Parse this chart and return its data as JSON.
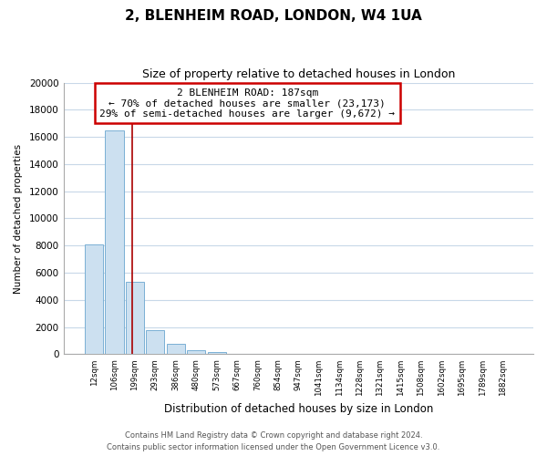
{
  "title": "2, BLENHEIM ROAD, LONDON, W4 1UA",
  "subtitle": "Size of property relative to detached houses in London",
  "xlabel": "Distribution of detached houses by size in London",
  "ylabel": "Number of detached properties",
  "bar_labels": [
    "12sqm",
    "106sqm",
    "199sqm",
    "293sqm",
    "386sqm",
    "480sqm",
    "573sqm",
    "667sqm",
    "760sqm",
    "854sqm",
    "947sqm",
    "1041sqm",
    "1134sqm",
    "1228sqm",
    "1321sqm",
    "1415sqm",
    "1508sqm",
    "1602sqm",
    "1695sqm",
    "1789sqm",
    "1882sqm"
  ],
  "bar_values": [
    8100,
    16500,
    5300,
    1800,
    800,
    300,
    150,
    0,
    0,
    0,
    0,
    0,
    0,
    0,
    0,
    0,
    0,
    0,
    0,
    0,
    0
  ],
  "bar_color": "#cce0f0",
  "bar_edge_color": "#7ab0d4",
  "annotation_title": "2 BLENHEIM ROAD: 187sqm",
  "annotation_line1": "← 70% of detached houses are smaller (23,173)",
  "annotation_line2": "29% of semi-detached houses are larger (9,672) →",
  "annotation_box_color": "#ffffff",
  "annotation_box_edge": "#cc0000",
  "vline_color": "#aa0000",
  "ylim": [
    0,
    20000
  ],
  "yticks": [
    0,
    2000,
    4000,
    6000,
    8000,
    10000,
    12000,
    14000,
    16000,
    18000,
    20000
  ],
  "footer_line1": "Contains HM Land Registry data © Crown copyright and database right 2024.",
  "footer_line2": "Contains public sector information licensed under the Open Government Licence v3.0.",
  "background_color": "#ffffff",
  "grid_color": "#c8d8e8"
}
